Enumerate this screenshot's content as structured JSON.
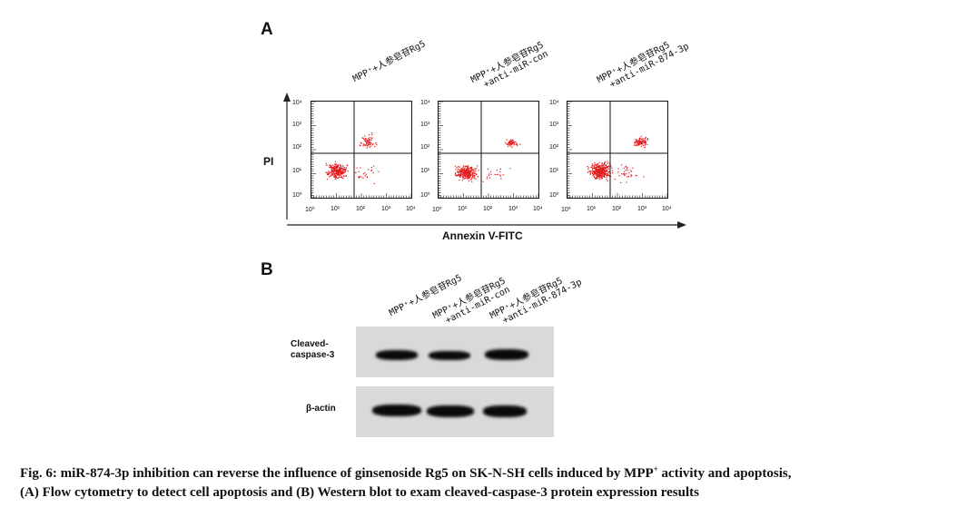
{
  "panel_a": {
    "letter": "A",
    "samples": [
      {
        "line1": "MPP⁺+人参皂苷Rg5",
        "line2": ""
      },
      {
        "line1": "MPP⁺+人参皂苷Rg5",
        "line2": "+anti-miR-con"
      },
      {
        "line1": "MPP⁺+人参皂苷Rg5",
        "line2": "+anti-miR-874-3p"
      }
    ],
    "y_axis_label": "PI",
    "x_axis_label": "Annexin V-FITC",
    "tick_labels": [
      "10⁰",
      "10¹",
      "10²",
      "10³",
      "10⁴"
    ]
  },
  "panel_b": {
    "letter": "B",
    "samples": [
      {
        "line1": "MPP⁺+人参皂苷Rg5",
        "line2": ""
      },
      {
        "line1": "MPP⁺+人参皂苷Rg5",
        "line2": "+anti-miR-con"
      },
      {
        "line1": "MPP⁺+人参皂苷Rg5",
        "line2": "+anti-miR-874-3p"
      }
    ],
    "rows": [
      {
        "label_line1": "Cleaved-",
        "label_line2": "caspase-3"
      },
      {
        "label_line1": "β-actin",
        "label_line2": ""
      }
    ]
  },
  "caption": {
    "line1_pre": "Fig. 6: miR-874-3p inhibition can reverse the influence of ginsenoside Rg5 on SK-N-SH cells induced by MPP",
    "line1_sup": "+",
    "line1_post": " activity and apoptosis,",
    "line2": "(A) Flow cytometry to detect cell apoptosis and (B) Western blot to exam cleaved-caspase-3 protein expression results"
  },
  "colors": {
    "dots": "#e31a1c",
    "text": "#111111",
    "blot_bg": "#d9d9d9"
  }
}
